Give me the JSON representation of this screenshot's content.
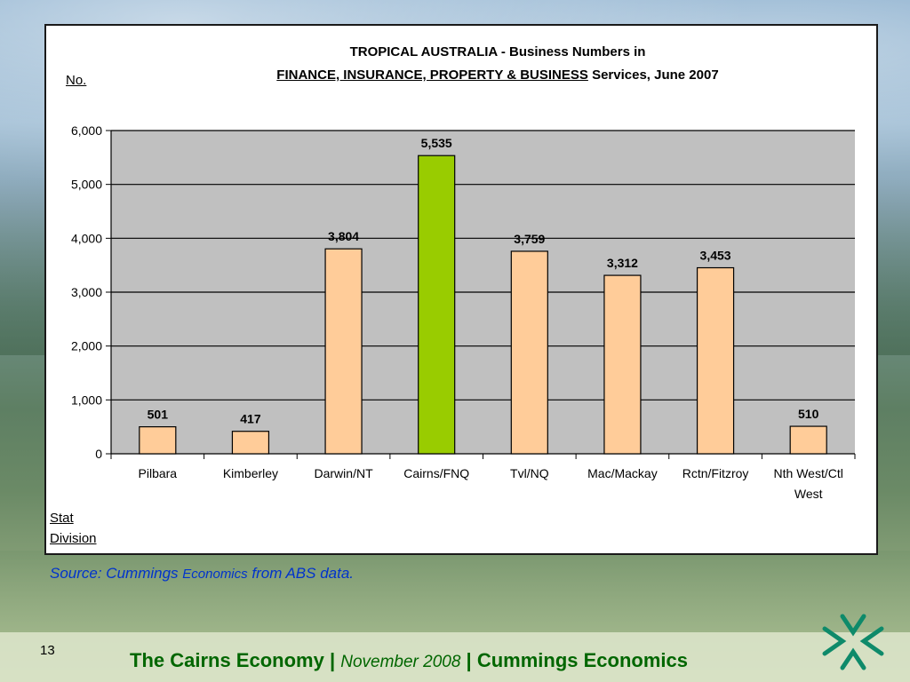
{
  "chart_data": {
    "type": "bar",
    "title_line1": "TROPICAL AUSTRALIA - Business Numbers in",
    "title_line2_underlined": "FINANCE, INSURANCE, PROPERTY & BUSINESS",
    "title_line2_rest": " Services, June 2007",
    "ylabel": "No.",
    "xlabel_line1": "Stat",
    "xlabel_line2": "Division",
    "categories": [
      "Pilbara",
      "Kimberley",
      "Darwin/NT",
      "Cairns/FNQ",
      "Tvl/NQ",
      "Mac/Mackay",
      "Rctn/Fitzroy",
      "Nth West/Ctl West"
    ],
    "values": [
      501,
      417,
      3804,
      5535,
      3759,
      3312,
      3453,
      510
    ],
    "data_labels": [
      "501",
      "417",
      "3,804",
      "5,535",
      "3,759",
      "3,312",
      "3,453",
      "510"
    ],
    "highlight_index": 3,
    "colors": {
      "bar": "#ffcc99",
      "highlight": "#99cc00",
      "plot_bg": "#c0c0c0"
    },
    "ylim": [
      0,
      6000
    ],
    "yticks": [
      0,
      1000,
      2000,
      3000,
      4000,
      5000,
      6000
    ],
    "ytick_labels": [
      "0",
      "1,000",
      "2,000",
      "3,000",
      "4,000",
      "5,000",
      "6,000"
    ],
    "grid": true,
    "legend": "none"
  },
  "source": {
    "prefix": "Source:  Cummings ",
    "small": "Economics",
    "suffix": " from ABS data."
  },
  "footer": {
    "page_number": "13",
    "part1": "The Cairns Economy",
    "sep1": " | ",
    "part2": "November 2008",
    "sep2": " | ",
    "part3": "Cummings Economics"
  },
  "logo_icon": "cummings-economics-logo-icon"
}
